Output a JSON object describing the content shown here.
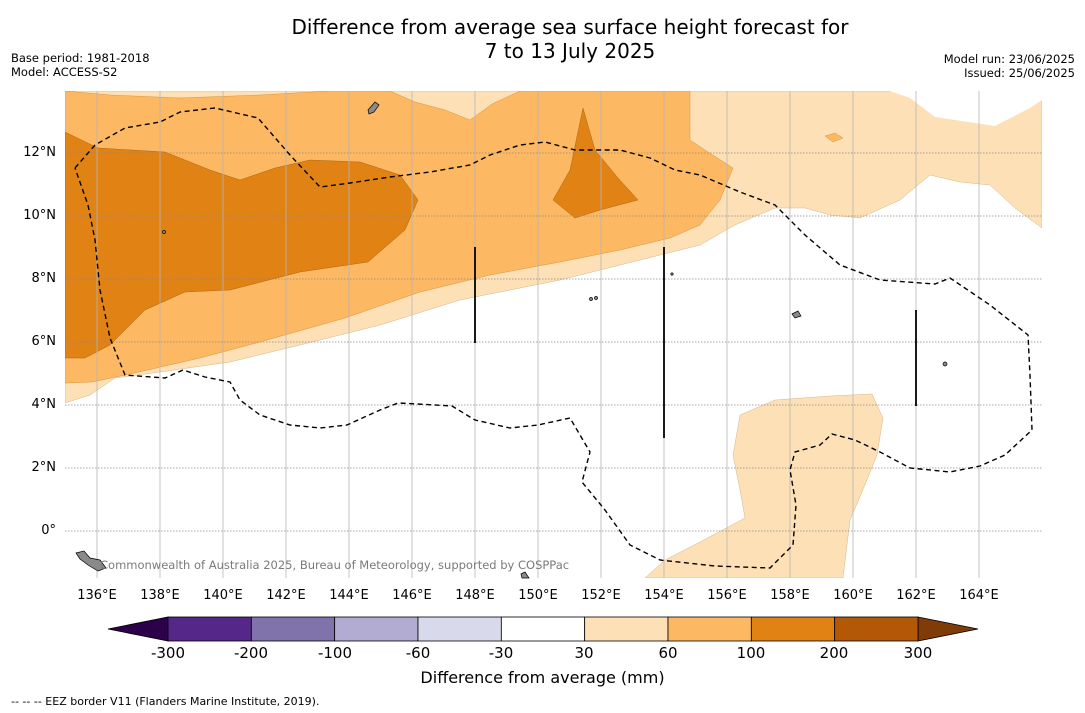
{
  "header": {
    "title_line1": "Difference from average sea surface height forecast for",
    "title_line2": "7 to 13 July 2025"
  },
  "meta_left": {
    "base_period": "Base period: 1981-2018",
    "model": "Model: ACCESS-S2"
  },
  "meta_right": {
    "model_run": "Model run: 23/06/2025",
    "issued": "Issued: 25/06/2025"
  },
  "map": {
    "lon_labels": [
      "136°E",
      "138°E",
      "140°E",
      "142°E",
      "144°E",
      "146°E",
      "148°E",
      "150°E",
      "152°E",
      "154°E",
      "156°E",
      "158°E",
      "160°E",
      "162°E",
      "164°E"
    ],
    "lat_labels": [
      "12°N",
      "10°N",
      "8°N",
      "6°N",
      "4°N",
      "2°N",
      "0°"
    ],
    "copyright": "Commonwealth of Australia 2025, Bureau of Meteorology, supported by COSPPac"
  },
  "colorbar": {
    "tick_labels": [
      "-300",
      "-200",
      "-100",
      "-60",
      "-30",
      "30",
      "60",
      "100",
      "200",
      "300"
    ],
    "colors": [
      "#542788",
      "#8073ac",
      "#b2abd2",
      "#d8daeb",
      "#ffffff",
      "#fee0b6",
      "#fdb863",
      "#e08214",
      "#b35806"
    ],
    "extend_low_color": "#2d004b",
    "extend_high_color": "#7f3b08",
    "title": "Difference from average (mm)"
  },
  "footnote": "--  --  -- EEZ border V11 (Flanders Marine Institute, 2019)."
}
